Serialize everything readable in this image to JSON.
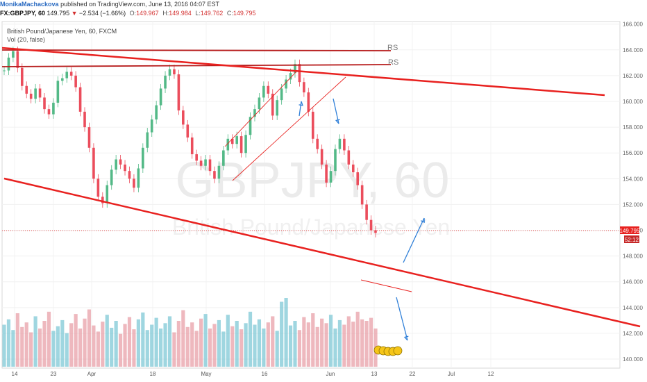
{
  "header": {
    "author": "MonikaMachackova",
    "published": "published on TradingView.com, June 13, 2016 04:07 EST"
  },
  "quote": {
    "symbol": "FX:GBPJPY, 60",
    "last": "149.795",
    "change": "−2.534 (−1.66%)",
    "o_label": "O:",
    "o": "149.967",
    "h_label": "H:",
    "h": "149.984",
    "l_label": "L:",
    "l": "149.762",
    "c_label": "C:",
    "c": "149.795"
  },
  "legend": {
    "title": "British Pound/Japanese Yen, 60, FXCM",
    "volume": "Vol (20, false)"
  },
  "watermark": {
    "symbol": "GBPJPY, 60",
    "name": "British Pound/Japanese Yen"
  },
  "price_tag": {
    "value": "149.795",
    "countdown": "52:12"
  },
  "annotations": {
    "rs1": "RS",
    "rs2": "RS"
  },
  "colors": {
    "up": "#53b987",
    "down": "#eb4d5c",
    "trend": "#e8211f",
    "arrow": "#2f7fd8",
    "vol_up": "#7fc8d6",
    "vol_down": "#e8a0a8"
  },
  "chart_data": {
    "type": "line",
    "symbol": "GBPJPY",
    "y_ticks": [
      "140.000",
      "142.000",
      "144.000",
      "146.000",
      "148.000",
      "150.000",
      "152.000",
      "154.000",
      "156.000",
      "158.000",
      "160.000",
      "162.000",
      "164.000",
      "166.000"
    ],
    "ylim": [
      139.3,
      166.2
    ],
    "x_ticks": [
      "14",
      "23",
      "Apr",
      "18",
      "May",
      "16",
      "Jun",
      "13",
      "22",
      "Jul",
      "12"
    ],
    "grid": true,
    "series": [
      {
        "values": [
          162.4,
          163.4,
          163.9,
          162.6,
          161.2,
          160.6,
          160.2,
          161.0,
          160.3,
          159.4,
          159.0,
          159.9,
          161.6,
          161.8,
          162.3,
          162.0,
          161.1,
          159.2,
          158.0,
          156.4,
          154.0,
          152.6,
          152.1,
          153.5,
          154.7,
          155.5,
          155.1,
          154.6,
          154.0,
          153.3,
          154.8,
          156.4,
          157.6,
          158.6,
          159.7,
          161.0,
          162.0,
          162.5,
          162.1,
          159.3,
          158.2,
          157.2,
          155.9,
          155.4,
          155.0,
          155.5,
          154.6,
          154.0,
          155.0,
          156.2,
          157.1,
          156.7,
          157.3,
          156.0,
          157.4,
          158.8,
          159.4,
          160.3,
          161.2,
          160.6,
          158.9,
          160.1,
          161.0,
          161.7,
          162.2,
          162.9,
          161.5,
          160.7,
          159.2,
          157.1,
          156.3,
          155.1,
          153.7,
          154.6,
          156.3,
          157.1,
          156.2,
          155.1,
          154.5,
          153.5,
          152.0,
          150.8,
          150.0,
          149.8
        ]
      }
    ],
    "volume": [
      0.55,
      0.62,
      0.48,
      0.7,
      0.52,
      0.58,
      0.45,
      0.66,
      0.5,
      0.6,
      0.72,
      0.47,
      0.53,
      0.61,
      0.44,
      0.57,
      0.69,
      0.5,
      0.63,
      0.75,
      0.54,
      0.46,
      0.59,
      0.68,
      0.51,
      0.6,
      0.43,
      0.56,
      0.65,
      0.49,
      0.62,
      0.71,
      0.48,
      0.55,
      0.64,
      0.5,
      0.57,
      0.66,
      0.45,
      0.6,
      0.74,
      0.52,
      0.58,
      0.47,
      0.63,
      0.69,
      0.5,
      0.56,
      0.61,
      0.46,
      0.68,
      0.53,
      0.6,
      0.49,
      0.57,
      0.72,
      0.55,
      0.62,
      0.5,
      0.58,
      0.66,
      0.47,
      0.85,
      0.9,
      0.54,
      0.6,
      0.48,
      0.65,
      0.58,
      0.7,
      0.52,
      0.63,
      0.57,
      0.68,
      0.5,
      0.61,
      0.55,
      0.66,
      0.59,
      0.72,
      0.62,
      0.6,
      0.64,
      0.5
    ]
  }
}
